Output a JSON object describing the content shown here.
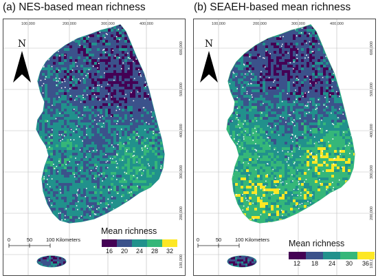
{
  "panels": [
    {
      "title": "(a) NES-based mean richness",
      "x_ticks": [
        "100,000",
        "200,000",
        "300,000",
        "400,000"
      ],
      "y_ticks": [
        "600,000",
        "500,000",
        "400,000",
        "300,000",
        "200,000",
        "100,000"
      ],
      "legend": {
        "title": "Mean richness",
        "ticks": [
          "16",
          "20",
          "24",
          "28",
          "32"
        ],
        "colors": [
          "#440154",
          "#3b528b",
          "#21918c",
          "#35b779",
          "#fde725"
        ]
      },
      "scale_bar": {
        "labels": [
          "0",
          "50",
          "100 Kilometers"
        ]
      },
      "north_label": "N",
      "region_levels": {
        "north": 0.25,
        "northeast": 0.05,
        "west": 0.55,
        "center": 0.3,
        "southwest": 0.4,
        "southeast": 0.7,
        "jeju": 0.25
      }
    },
    {
      "title": "(b) SEAEH-based mean richness",
      "x_ticks": [
        "100,000",
        "200,000",
        "300,000",
        "400,000"
      ],
      "y_ticks": [
        "600,000",
        "500,000",
        "400,000",
        "300,000",
        "200,000",
        "100,000"
      ],
      "legend": {
        "title": "Mean richness",
        "ticks": [
          "12",
          "18",
          "24",
          "30",
          "36"
        ],
        "colors": [
          "#440154",
          "#3b528b",
          "#21918c",
          "#35b779",
          "#fde725"
        ]
      },
      "scale_bar": {
        "labels": [
          "0",
          "50",
          "100 Kilometers"
        ]
      },
      "north_label": "N",
      "region_levels": {
        "north": 0.1,
        "northeast": 0.15,
        "west": 0.7,
        "center": 0.35,
        "southwest": 0.85,
        "southeast": 0.9,
        "jeju": 0.2
      }
    }
  ],
  "colors": {
    "ramp": [
      "#440154",
      "#3b528b",
      "#21918c",
      "#35b779",
      "#fde725"
    ],
    "frame": "#444444",
    "grid": "#bbbbbb"
  }
}
